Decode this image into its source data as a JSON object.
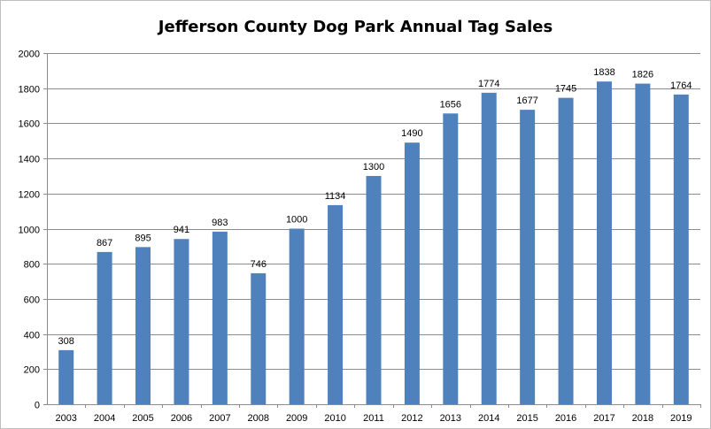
{
  "chart_data": {
    "type": "bar",
    "title": "Jefferson County Dog Park Annual Tag Sales",
    "xlabel": "",
    "ylabel": "",
    "categories": [
      "2003",
      "2004",
      "2005",
      "2006",
      "2007",
      "2008",
      "2009",
      "2010",
      "2011",
      "2012",
      "2013",
      "2014",
      "2015",
      "2016",
      "2017",
      "2018",
      "2019"
    ],
    "values": [
      308,
      867,
      895,
      941,
      983,
      746,
      1000,
      1134,
      1300,
      1490,
      1656,
      1774,
      1677,
      1745,
      1838,
      1826,
      1764
    ],
    "ylim": [
      0,
      2000
    ],
    "yticks": [
      0,
      200,
      400,
      600,
      800,
      1000,
      1200,
      1400,
      1600,
      1800,
      2000
    ],
    "grid": true,
    "legend": "none",
    "colors": {
      "bar": "#4f81bd",
      "grid": "#8c8c8c",
      "axis": "#8c8c8c"
    }
  }
}
